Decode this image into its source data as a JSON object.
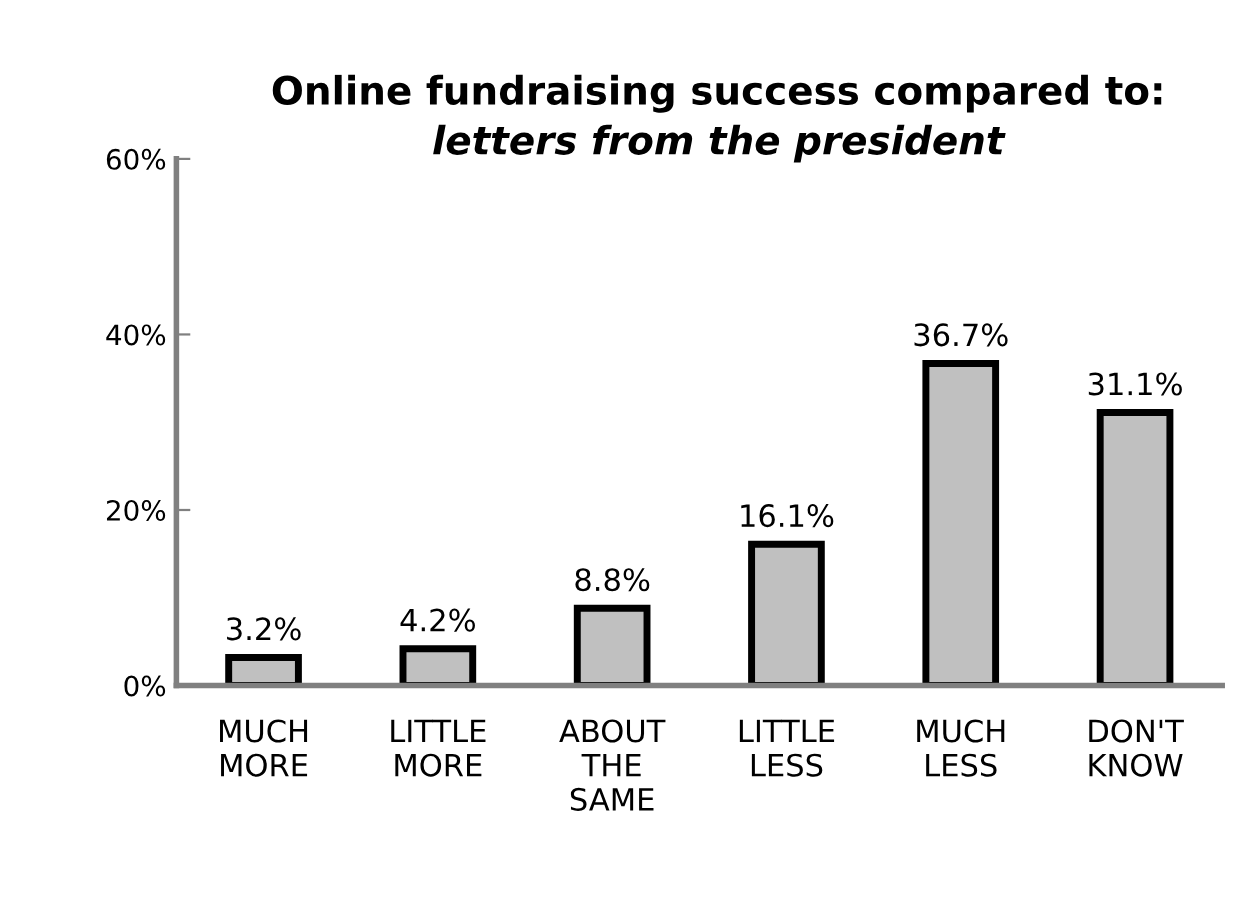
{
  "chart_data": {
    "type": "bar",
    "title": "Online fundraising success compared to:",
    "subtitle": "letters from the president",
    "categories": [
      "MUCH\nMORE",
      "LITTLE\nMORE",
      "ABOUT\nTHE\nSAME",
      "LITTLE\nLESS",
      "MUCH\nLESS",
      "DON'T\nKNOW"
    ],
    "values": [
      3.2,
      4.2,
      8.8,
      16.1,
      36.7,
      31.1
    ],
    "value_labels": [
      "3.2%",
      "4.2%",
      "8.8%",
      "16.1%",
      "36.7%",
      "31.1%"
    ],
    "color": "#c0c0c0",
    "ylim": [
      0,
      60
    ],
    "yticks": [
      {
        "value": 0,
        "label": "0%"
      },
      {
        "value": 20,
        "label": "20%"
      },
      {
        "value": 40,
        "label": "40%"
      },
      {
        "value": 60,
        "label": "60%"
      }
    ],
    "grid": false,
    "legend": false
  }
}
